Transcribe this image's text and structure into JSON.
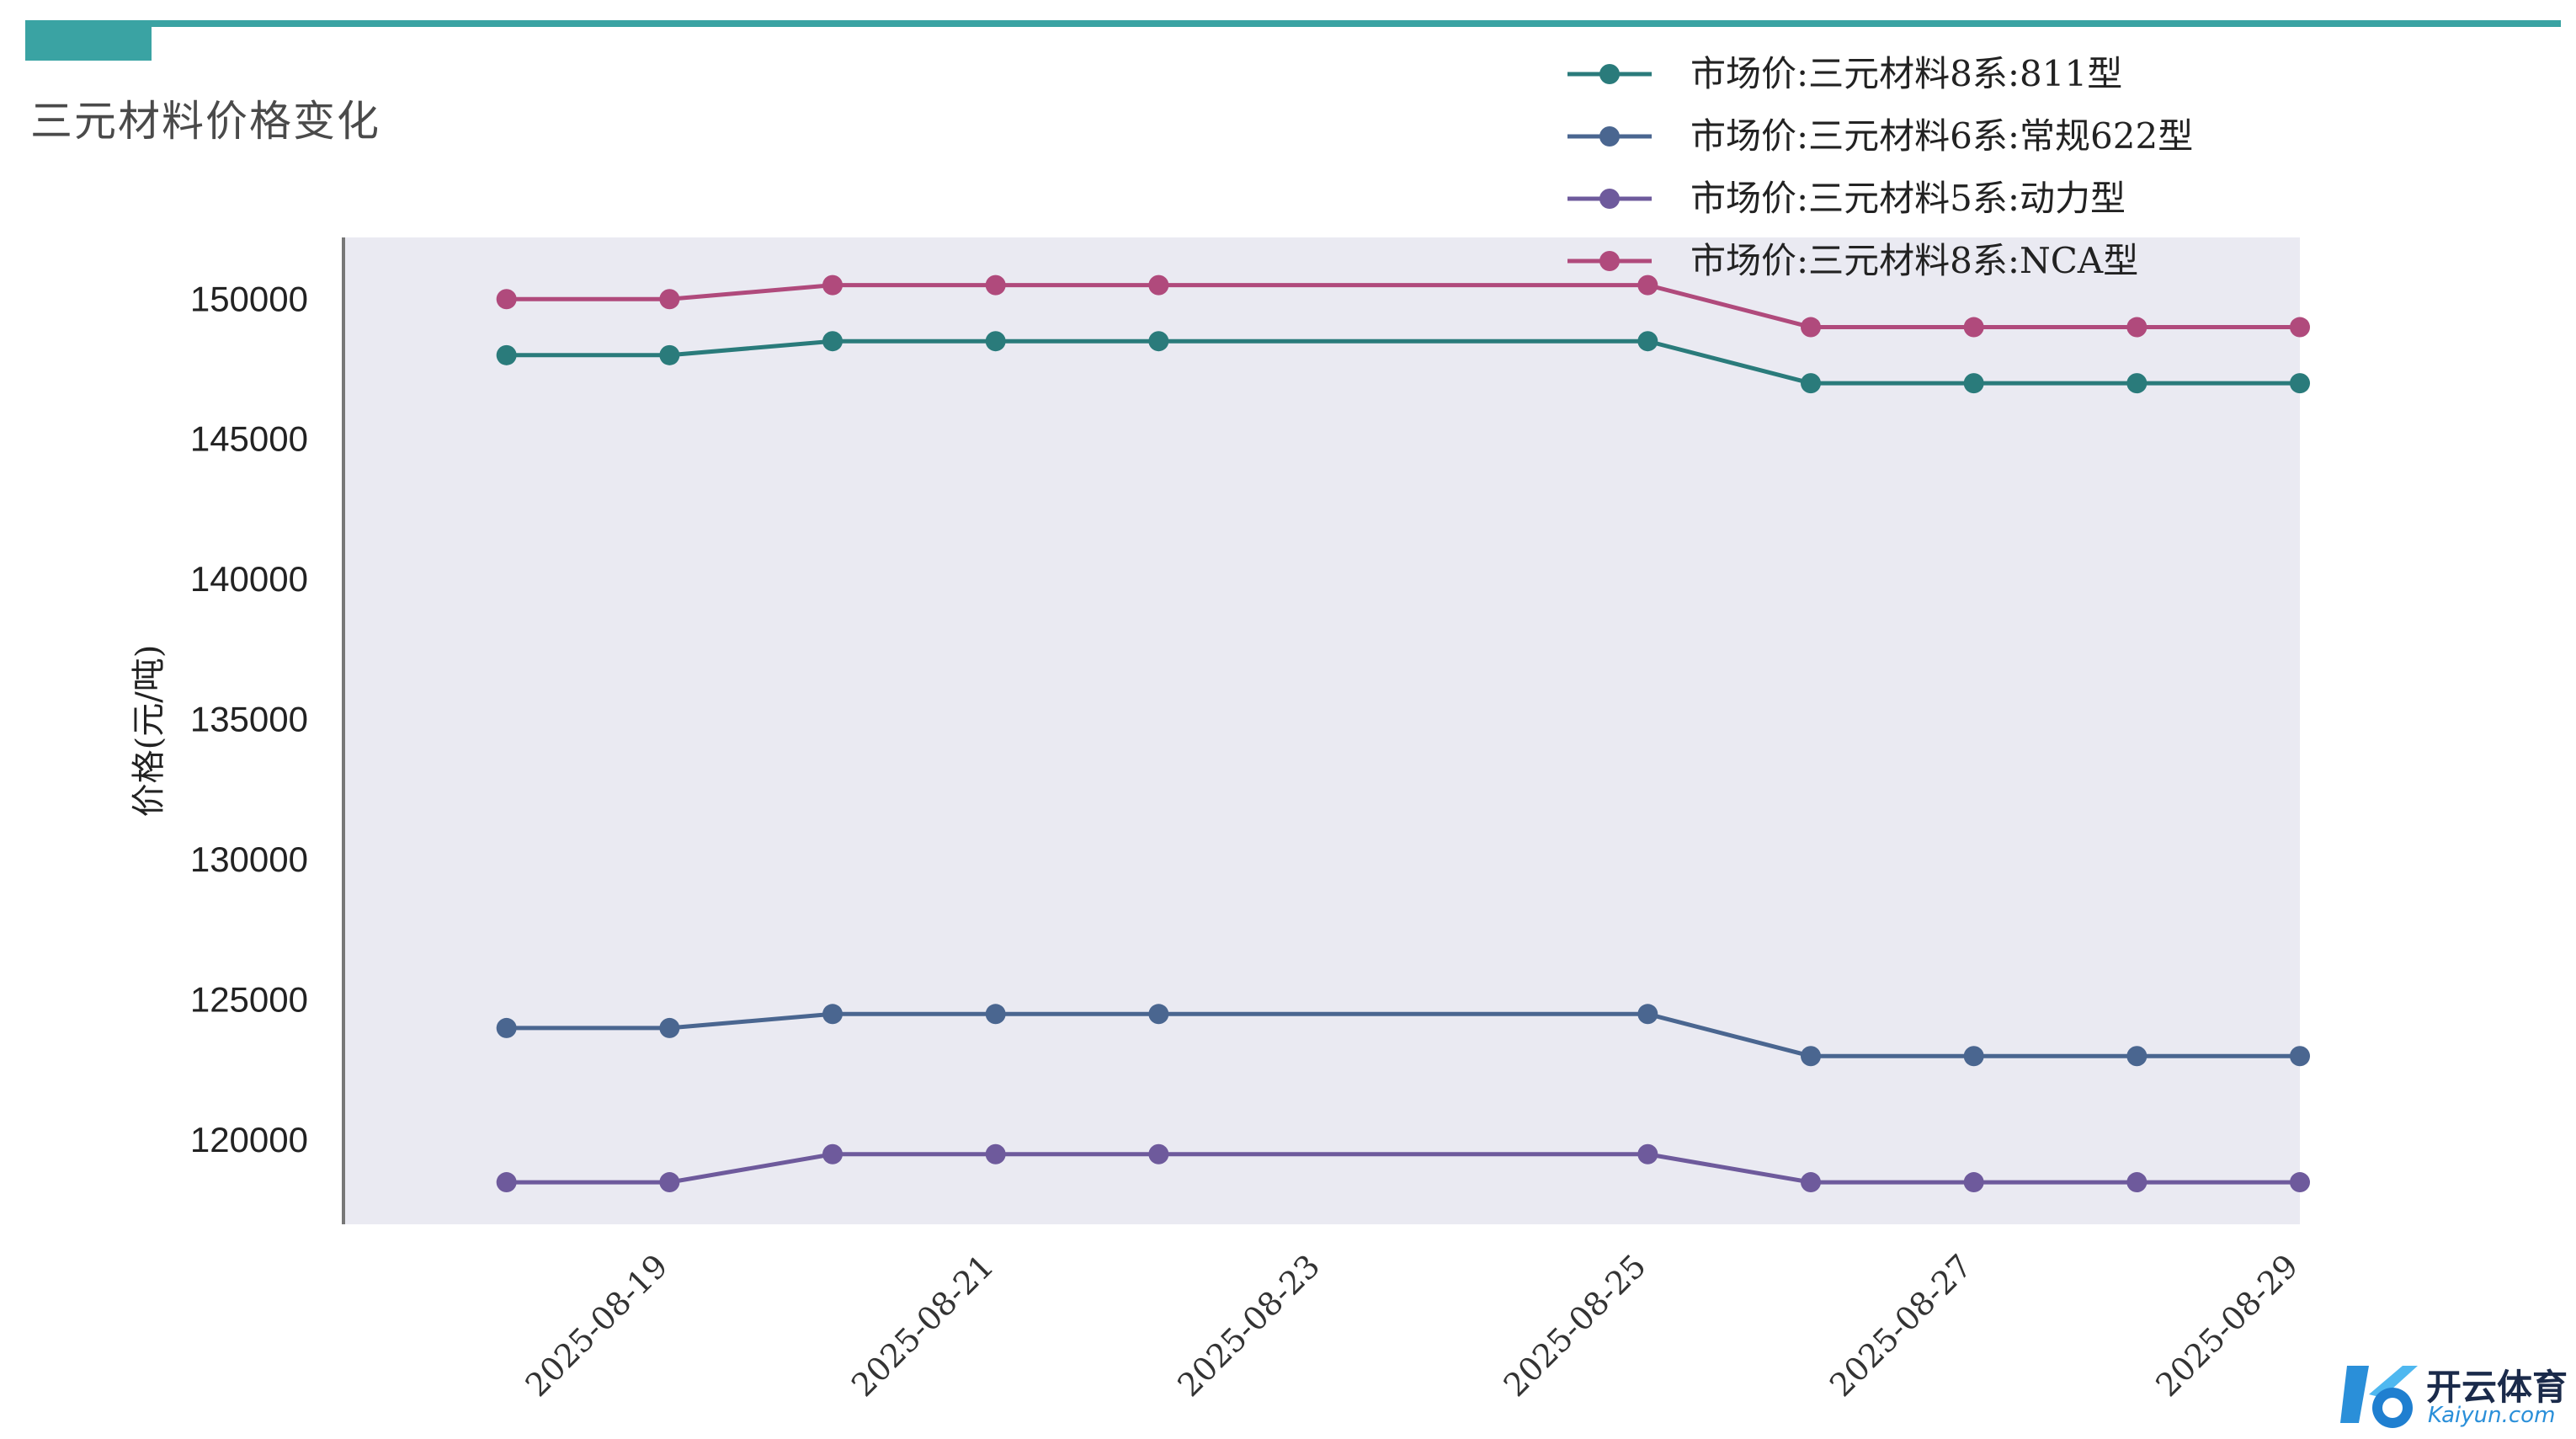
{
  "page": {
    "title": "三元材料价格变化",
    "accent_color": "#3aa3a3"
  },
  "chart_data": {
    "type": "line",
    "ylabel": "价格(元/吨)",
    "xlabel": "",
    "x": [
      "2025-08-18",
      "2025-08-19",
      "2025-08-20",
      "2025-08-21",
      "2025-08-22",
      "2025-08-25",
      "2025-08-26",
      "2025-08-27",
      "2025-08-28",
      "2025-08-29"
    ],
    "x_range": [
      "2025-08-17",
      "2025-08-29"
    ],
    "xticks": [
      "2025-08-19",
      "2025-08-21",
      "2025-08-23",
      "2025-08-25",
      "2025-08-27",
      "2025-08-29"
    ],
    "yticks": [
      120000,
      125000,
      130000,
      135000,
      140000,
      145000,
      150000
    ],
    "ylim": [
      117000,
      152200
    ],
    "grid": false,
    "plot_background": "#eaeaf2",
    "legend_position": "top-right",
    "series": [
      {
        "name": "市场价:三元材料8系:811型",
        "color": "#2a7b7b",
        "values": [
          148000,
          148000,
          148500,
          148500,
          148500,
          148500,
          147000,
          147000,
          147000,
          147000
        ]
      },
      {
        "name": "市场价:三元材料6系:常规622型",
        "color": "#4a6690",
        "values": [
          124000,
          124000,
          124500,
          124500,
          124500,
          124500,
          123000,
          123000,
          123000,
          123000
        ]
      },
      {
        "name": "市场价:三元材料5系:动力型",
        "color": "#6e5a9c",
        "values": [
          118500,
          118500,
          119500,
          119500,
          119500,
          119500,
          118500,
          118500,
          118500,
          118500
        ]
      },
      {
        "name": "市场价:三元材料8系:NCA型",
        "color": "#b04a7c",
        "values": [
          150000,
          150000,
          150500,
          150500,
          150500,
          150500,
          149000,
          149000,
          149000,
          149000
        ]
      }
    ]
  },
  "watermark": {
    "name": "开云体育",
    "domain": "Kaiyun.com"
  }
}
